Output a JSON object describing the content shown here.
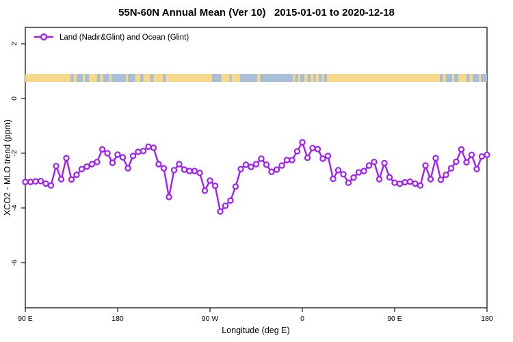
{
  "title": "55N-60N Annual Mean (Ver 10)   2015-01-01 to 2020-12-18",
  "legend": {
    "label": "Land (Nadir&Glint) and Ocean (Glint)"
  },
  "colors": {
    "series": "#A020F0",
    "land": "#F7D98C",
    "ocean": "#A9BFD9",
    "axis": "#000000",
    "background": "#FFFFFF"
  },
  "chart_data": {
    "type": "line",
    "title": "55N-60N Annual Mean (Ver 10)   2015-01-01 to 2020-12-18",
    "xlabel": "Longitude (deg E)",
    "ylabel": "XCO2 - MLO trend (ppm)",
    "legend_position": "top-left-inside",
    "grid": false,
    "marker": "open-circle",
    "x_axis": {
      "range": [
        90,
        540
      ],
      "note": "longitude wraps eastward: 90E to 180, 90W, 0, 90E, 180",
      "ticks": [
        {
          "x": 90,
          "label": "90 E"
        },
        {
          "x": 180,
          "label": "180"
        },
        {
          "x": 270,
          "label": "90 W"
        },
        {
          "x": 360,
          "label": "0"
        },
        {
          "x": 450,
          "label": "90 E"
        },
        {
          "x": 540,
          "label": "180"
        }
      ]
    },
    "y_axis": {
      "range": [
        -7.65,
        2.6
      ],
      "ticks": [
        {
          "y": 2,
          "label": "2"
        },
        {
          "y": 0,
          "label": "0"
        },
        {
          "y": -2,
          "label": "-2"
        },
        {
          "y": -4,
          "label": "-4"
        },
        {
          "y": -6,
          "label": "-6"
        }
      ]
    },
    "series": [
      {
        "name": "Land (Nadir&Glint) and Ocean (Glint)",
        "x": [
          90,
          95,
          100,
          105,
          110,
          115,
          120,
          125,
          130,
          135,
          140,
          145,
          150,
          155,
          160,
          165,
          170,
          175,
          180,
          185,
          190,
          195,
          200,
          205,
          210,
          215,
          220,
          225,
          230,
          235,
          240,
          245,
          250,
          255,
          260,
          265,
          270,
          275,
          280,
          285,
          290,
          295,
          300,
          305,
          310,
          315,
          320,
          325,
          330,
          335,
          340,
          345,
          350,
          355,
          360,
          365,
          370,
          375,
          380,
          385,
          390,
          395,
          400,
          405,
          410,
          415,
          420,
          425,
          430,
          435,
          440,
          445,
          450,
          455,
          460,
          465,
          470,
          475,
          480,
          485,
          490,
          495,
          500,
          505,
          510,
          515,
          520,
          525,
          530,
          535,
          540
        ],
        "values": [
          -3.05,
          -3.05,
          -3.03,
          -3.02,
          -3.11,
          -3.18,
          -2.47,
          -2.95,
          -2.18,
          -2.96,
          -2.79,
          -2.58,
          -2.49,
          -2.4,
          -2.32,
          -1.86,
          -2.0,
          -2.35,
          -2.05,
          -2.15,
          -2.55,
          -2.1,
          -1.95,
          -1.92,
          -1.76,
          -1.8,
          -2.4,
          -2.55,
          -3.6,
          -2.62,
          -2.4,
          -2.6,
          -2.65,
          -2.65,
          -2.72,
          -3.37,
          -3.0,
          -3.19,
          -4.13,
          -3.92,
          -3.73,
          -3.22,
          -2.58,
          -2.42,
          -2.5,
          -2.4,
          -2.2,
          -2.42,
          -2.68,
          -2.6,
          -2.45,
          -2.25,
          -2.25,
          -1.93,
          -1.6,
          -2.17,
          -1.81,
          -1.85,
          -2.2,
          -2.1,
          -2.94,
          -2.62,
          -2.77,
          -3.08,
          -2.89,
          -2.7,
          -2.65,
          -2.45,
          -2.32,
          -2.95,
          -2.36,
          -2.88,
          -3.08,
          -3.12,
          -3.06,
          -3.04,
          -3.11,
          -3.18,
          -2.45,
          -2.95,
          -2.18,
          -2.97,
          -2.79,
          -2.55,
          -2.31,
          -1.86,
          -2.33,
          -2.06,
          -2.58,
          -2.12,
          -2.06
        ]
      }
    ],
    "land_ocean_band": {
      "description": "horizontal strip showing land (yellow) vs ocean (blue) along 55N-60N",
      "top_ppm": 0.9,
      "bottom_ppm": 0.6,
      "segments": [
        [
          90,
          134,
          "land"
        ],
        [
          134,
          137,
          "ocean"
        ],
        [
          137,
          140,
          "land"
        ],
        [
          140,
          146,
          "ocean"
        ],
        [
          146,
          148,
          "land"
        ],
        [
          148,
          152,
          "ocean"
        ],
        [
          152,
          160,
          "land"
        ],
        [
          160,
          163,
          "ocean"
        ],
        [
          163,
          166,
          "land"
        ],
        [
          166,
          172,
          "ocean"
        ],
        [
          172,
          174,
          "land"
        ],
        [
          174,
          188,
          "ocean"
        ],
        [
          188,
          190,
          "land"
        ],
        [
          190,
          197,
          "ocean"
        ],
        [
          197,
          202,
          "land"
        ],
        [
          202,
          205,
          "ocean"
        ],
        [
          205,
          212,
          "land"
        ],
        [
          212,
          215,
          "ocean"
        ],
        [
          215,
          224,
          "land"
        ],
        [
          224,
          227,
          "ocean"
        ],
        [
          227,
          272,
          "land"
        ],
        [
          272,
          281,
          "ocean"
        ],
        [
          281,
          289,
          "land"
        ],
        [
          289,
          291,
          "ocean"
        ],
        [
          291,
          299,
          "land"
        ],
        [
          299,
          316,
          "ocean"
        ],
        [
          316,
          319,
          "land"
        ],
        [
          319,
          351,
          "ocean"
        ],
        [
          351,
          353,
          "land"
        ],
        [
          353,
          356,
          "ocean"
        ],
        [
          356,
          358,
          "land"
        ],
        [
          358,
          362,
          "ocean"
        ],
        [
          362,
          365,
          "land"
        ],
        [
          365,
          368,
          "ocean"
        ],
        [
          368,
          371,
          "land"
        ],
        [
          371,
          373,
          "ocean"
        ],
        [
          373,
          376,
          "land"
        ],
        [
          376,
          379,
          "ocean"
        ],
        [
          379,
          381,
          "land"
        ],
        [
          381,
          384,
          "ocean"
        ],
        [
          384,
          494,
          "land"
        ],
        [
          494,
          497,
          "ocean"
        ],
        [
          497,
          500,
          "land"
        ],
        [
          500,
          506,
          "ocean"
        ],
        [
          506,
          508,
          "land"
        ],
        [
          508,
          512,
          "ocean"
        ],
        [
          512,
          520,
          "land"
        ],
        [
          520,
          523,
          "ocean"
        ],
        [
          523,
          526,
          "land"
        ],
        [
          526,
          532,
          "ocean"
        ],
        [
          532,
          534,
          "land"
        ],
        [
          534,
          540,
          "ocean"
        ]
      ]
    }
  }
}
